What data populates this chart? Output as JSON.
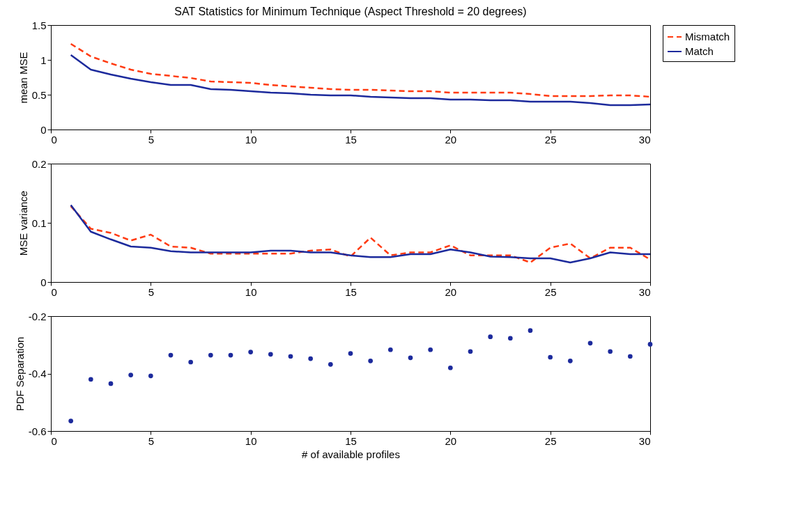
{
  "chart_data": [
    {
      "type": "line",
      "title": "SAT Statistics for Minimum Technique (Aspect Threshold = 20 degrees)",
      "ylabel": "mean MSE",
      "x": [
        1,
        2,
        3,
        4,
        5,
        6,
        7,
        8,
        9,
        10,
        11,
        12,
        13,
        14,
        15,
        16,
        17,
        18,
        19,
        20,
        21,
        22,
        23,
        24,
        25,
        26,
        27,
        28,
        29,
        30
      ],
      "xlim": [
        0,
        30
      ],
      "xticks": [
        0,
        5,
        10,
        15,
        20,
        25,
        30
      ],
      "ylim": [
        0,
        1.5
      ],
      "yticks": [
        0,
        0.5,
        1,
        1.5
      ],
      "legend": "right",
      "series": [
        {
          "name": "Mismatch",
          "color": "#ff3a10",
          "line_style": "dashed",
          "values": [
            1.23,
            1.05,
            0.95,
            0.86,
            0.8,
            0.77,
            0.74,
            0.69,
            0.68,
            0.67,
            0.64,
            0.62,
            0.6,
            0.58,
            0.57,
            0.57,
            0.56,
            0.55,
            0.55,
            0.53,
            0.53,
            0.53,
            0.53,
            0.51,
            0.48,
            0.48,
            0.48,
            0.49,
            0.49,
            0.47
          ]
        },
        {
          "name": "Match",
          "color": "#1c2a9c",
          "line_style": "solid",
          "values": [
            1.07,
            0.86,
            0.79,
            0.73,
            0.68,
            0.64,
            0.64,
            0.58,
            0.57,
            0.55,
            0.53,
            0.52,
            0.5,
            0.49,
            0.49,
            0.47,
            0.46,
            0.45,
            0.45,
            0.43,
            0.43,
            0.42,
            0.42,
            0.4,
            0.4,
            0.4,
            0.38,
            0.35,
            0.35,
            0.36
          ]
        }
      ]
    },
    {
      "type": "line",
      "ylabel": "MSE variance",
      "x": [
        1,
        2,
        3,
        4,
        5,
        6,
        7,
        8,
        9,
        10,
        11,
        12,
        13,
        14,
        15,
        16,
        17,
        18,
        19,
        20,
        21,
        22,
        23,
        24,
        25,
        26,
        27,
        28,
        29,
        30
      ],
      "xlim": [
        0,
        30
      ],
      "xticks": [
        0,
        5,
        10,
        15,
        20,
        25,
        30
      ],
      "ylim": [
        0,
        0.2
      ],
      "yticks": [
        0,
        0.1,
        0.2
      ],
      "series": [
        {
          "color": "#ff3a10",
          "line_style": "dashed",
          "values": [
            0.128,
            0.09,
            0.083,
            0.07,
            0.08,
            0.06,
            0.058,
            0.048,
            0.048,
            0.048,
            0.048,
            0.048,
            0.053,
            0.055,
            0.043,
            0.075,
            0.045,
            0.05,
            0.05,
            0.062,
            0.045,
            0.045,
            0.045,
            0.033,
            0.058,
            0.065,
            0.04,
            0.058,
            0.058,
            0.038
          ]
        },
        {
          "color": "#1c2a9c",
          "line_style": "solid",
          "values": [
            0.13,
            0.085,
            0.072,
            0.06,
            0.058,
            0.052,
            0.05,
            0.05,
            0.05,
            0.05,
            0.053,
            0.053,
            0.05,
            0.05,
            0.045,
            0.042,
            0.042,
            0.047,
            0.047,
            0.055,
            0.05,
            0.043,
            0.042,
            0.04,
            0.04,
            0.033,
            0.04,
            0.05,
            0.047,
            0.047
          ]
        }
      ]
    },
    {
      "type": "scatter",
      "ylabel": "PDF Separation",
      "xlabel": "# of available profiles",
      "marker": "circle",
      "x": [
        1,
        2,
        3,
        4,
        5,
        6,
        7,
        8,
        9,
        10,
        11,
        12,
        13,
        14,
        15,
        16,
        17,
        18,
        19,
        20,
        21,
        22,
        23,
        24,
        25,
        26,
        27,
        28,
        29,
        30
      ],
      "xlim": [
        0,
        30
      ],
      "xticks": [
        0,
        5,
        10,
        15,
        20,
        25,
        30
      ],
      "ylim": [
        -0.6,
        -0.2
      ],
      "yticks": [
        -0.6,
        -0.4,
        -0.2
      ],
      "series": [
        {
          "color": "#1c2a9c",
          "values": [
            -0.565,
            -0.42,
            -0.435,
            -0.405,
            -0.408,
            -0.336,
            -0.36,
            -0.336,
            -0.336,
            -0.325,
            -0.333,
            -0.34,
            -0.348,
            -0.368,
            -0.33,
            -0.356,
            -0.317,
            -0.345,
            -0.317,
            -0.38,
            -0.323,
            -0.272,
            -0.277,
            -0.25,
            -0.343,
            -0.356,
            -0.294,
            -0.323,
            -0.34,
            -0.298
          ]
        }
      ]
    }
  ]
}
